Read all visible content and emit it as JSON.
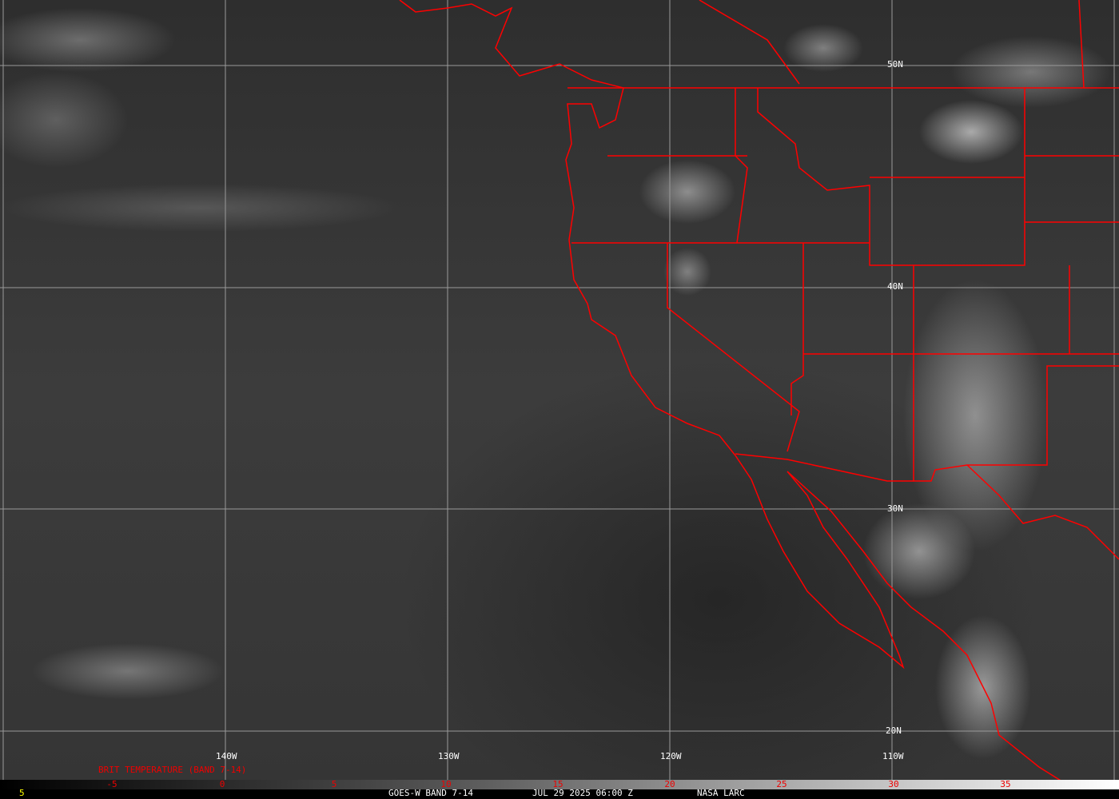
{
  "map": {
    "lat_labels": [
      "50N",
      "40N",
      "30N",
      "20N"
    ],
    "lon_labels": [
      "140W",
      "130W",
      "120W",
      "110W"
    ],
    "boundary_color": "#ff0000",
    "grid_color": "#9a9a9a"
  },
  "legend": {
    "title": "BRIT TEMPERATURE (BAND 7-14)",
    "ticks": [
      "-5",
      "0",
      "5",
      "10",
      "15",
      "20",
      "25",
      "30",
      "35"
    ],
    "corner_value": "5"
  },
  "footer": {
    "satellite": "GOES-W BAND 7-14",
    "datetime": "JUL 29 2025 06:00 Z",
    "source": "NASA LARC"
  }
}
